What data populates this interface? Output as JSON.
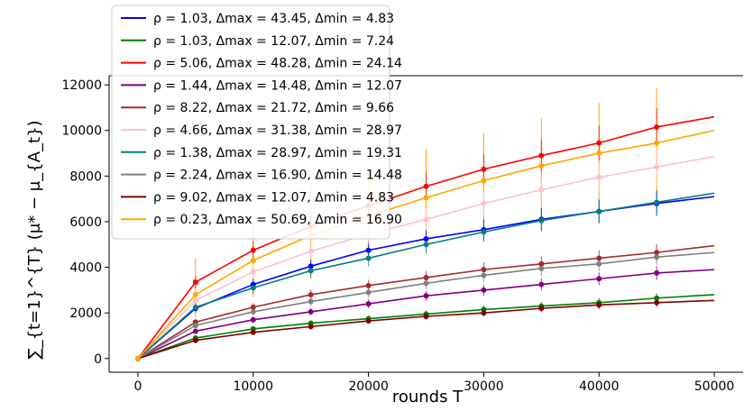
{
  "chart_data": {
    "type": "line",
    "xlabel": "rounds T",
    "ylabel": "∑_{t=1}^{T} (μ* − μ_{A_t})",
    "xlim": [
      -2500,
      52500
    ],
    "ylim": [
      -600,
      12400
    ],
    "xticks": [
      0,
      10000,
      20000,
      30000,
      40000,
      50000
    ],
    "yticks": [
      0,
      2000,
      4000,
      6000,
      8000,
      10000,
      12000
    ],
    "grid": false,
    "legend_position": "top-left",
    "x": [
      0,
      5000,
      10000,
      15000,
      20000,
      25000,
      30000,
      35000,
      40000,
      45000,
      50000
    ],
    "series": [
      {
        "name": "ρ = 1.03, Δmax = 43.45, Δmin = 4.83",
        "color": "#0000ff",
        "values": [
          0,
          2200,
          3250,
          4050,
          4750,
          5250,
          5650,
          6100,
          6450,
          6800,
          7100
        ]
      },
      {
        "name": "ρ = 1.03, Δmax = 12.07, Δmin = 7.24",
        "color": "#008000",
        "values": [
          0,
          900,
          1300,
          1550,
          1750,
          1950,
          2150,
          2300,
          2450,
          2650,
          2800
        ]
      },
      {
        "name": "ρ = 5.06, Δmax = 48.28, Δmin = 24.14",
        "color": "#ff0000",
        "values": [
          0,
          3350,
          4750,
          5800,
          6700,
          7550,
          8300,
          8900,
          9450,
          10150,
          10600
        ]
      },
      {
        "name": "ρ = 1.44, Δmax = 14.48, Δmin = 12.07",
        "color": "#800080",
        "values": [
          0,
          1200,
          1700,
          2050,
          2400,
          2750,
          3000,
          3250,
          3500,
          3750,
          3900
        ]
      },
      {
        "name": "ρ = 8.22, Δmax = 21.72, Δmin = 9.66",
        "color": "#a52a2a",
        "values": [
          0,
          1600,
          2250,
          2800,
          3200,
          3550,
          3900,
          4150,
          4400,
          4650,
          4950
        ]
      },
      {
        "name": "ρ = 4.66, Δmax = 31.38, Δmin = 28.97",
        "color": "#ffc0cb",
        "values": [
          0,
          2550,
          3800,
          4700,
          5450,
          6100,
          6800,
          7400,
          7950,
          8400,
          8850
        ]
      },
      {
        "name": "ρ = 1.38, Δmax = 28.97, Δmin = 19.31",
        "color": "#008080",
        "values": [
          0,
          2250,
          3100,
          3850,
          4400,
          5000,
          5550,
          6050,
          6450,
          6850,
          7250
        ]
      },
      {
        "name": "ρ = 2.24, Δmax = 16.90, Δmin = 14.48",
        "color": "#808080",
        "values": [
          0,
          1450,
          2050,
          2500,
          2900,
          3300,
          3650,
          3950,
          4150,
          4450,
          4650
        ]
      },
      {
        "name": "ρ = 9.02, Δmax = 12.07, Δmin = 4.83",
        "color": "#800000",
        "values": [
          0,
          800,
          1150,
          1400,
          1650,
          1850,
          2000,
          2200,
          2350,
          2450,
          2550
        ]
      },
      {
        "name": "ρ = 0.23, Δmax = 50.69, Δmin = 16.90",
        "color": "#ffa500",
        "values": [
          0,
          2800,
          4300,
          5400,
          6250,
          7050,
          7800,
          8450,
          9000,
          9450,
          10000
        ]
      }
    ],
    "orange_error_bars": {
      "x": [
        5000,
        10000,
        15000,
        20000,
        25000,
        30000,
        35000,
        40000,
        45000
      ],
      "upper": [
        4400,
        6000,
        7600,
        8300,
        9200,
        9900,
        10550,
        11200,
        11850
      ],
      "lower": [
        1800,
        2700,
        3500,
        4500,
        5000,
        5500,
        6000,
        6500,
        7000
      ]
    }
  }
}
